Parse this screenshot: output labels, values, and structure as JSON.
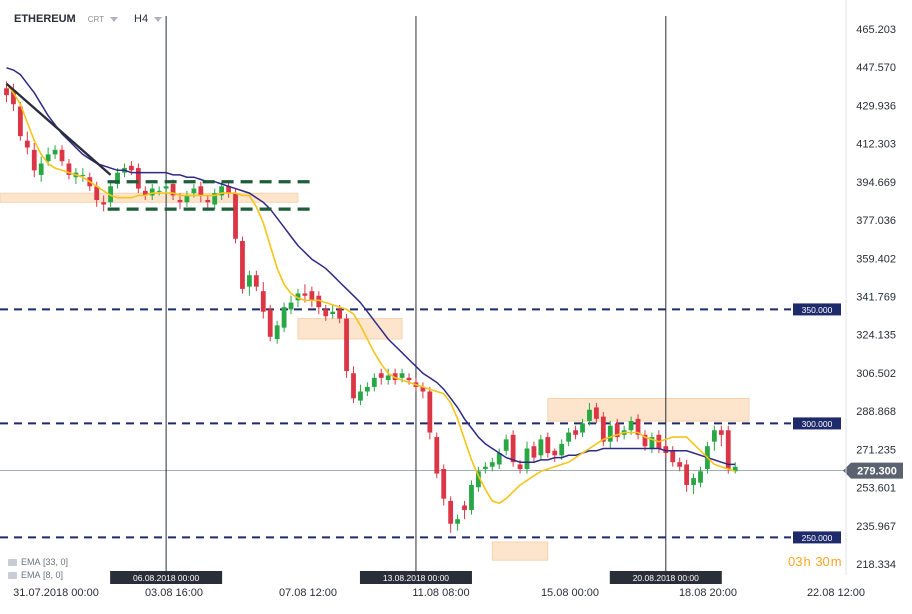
{
  "header": {
    "symbol": "ETHEREUM",
    "chart_kind": "CRT",
    "timeframe": "H4"
  },
  "legend": [
    {
      "label": "EMA",
      "params": "[33, 0]"
    },
    {
      "label": "EMA",
      "params": "[8, 0]"
    }
  ],
  "countdown": {
    "hours": "03",
    "h": "h",
    "minutes": "30",
    "m": "m"
  },
  "chart_data": {
    "type": "candlestick",
    "ylim": [
      238.334,
      473.0
    ],
    "y_ticks": [
      "465.203",
      "447.570",
      "429.936",
      "412.303",
      "394.669",
      "377.036",
      "359.402",
      "341.769",
      "324.135",
      "306.502",
      "288.868",
      "271.235",
      "253.601",
      "235.967",
      "218.334"
    ],
    "x_ticks": [
      "31.07.2018  00:00",
      "03.08  16:00",
      "07.08  12:00",
      "11.08  08:00",
      "15.08  00:00",
      "18.08  20:00",
      "22.08  12:00"
    ],
    "current_price": "279.300",
    "horizontal_levels": [
      {
        "price": 350.0,
        "label": "350.000"
      },
      {
        "price": 300.0,
        "label": "300.000"
      },
      {
        "price": 250.0,
        "label": "250.000"
      }
    ],
    "vertical_markers": [
      {
        "bar": 23,
        "label": "06.08.2018 00:00"
      },
      {
        "bar": 59,
        "label": "13.08.2018 00:00"
      },
      {
        "bar": 95,
        "label": "20.08.2018 00:00"
      }
    ],
    "zones": [
      {
        "b0": -1,
        "b1": 42,
        "p0": 397,
        "p1": 401
      },
      {
        "b0": 42,
        "b1": 57,
        "p0": 337,
        "p1": 346
      },
      {
        "b0": 78,
        "b1": 107,
        "p0": 301,
        "p1": 311
      },
      {
        "b0": 70,
        "b1": 78,
        "p0": 240,
        "p1": 248
      }
    ],
    "consolidation_box": {
      "b0": 15,
      "b1": 44,
      "p0": 394,
      "p1": 406
    },
    "trendline": {
      "b0": 0,
      "p0": 449,
      "b1": 15,
      "p1": 409
    },
    "series": [
      {
        "name": "EMA [33, 0]",
        "color": "#2e2a86",
        "values": [
          456,
          455,
          453,
          449,
          445,
          440,
          435,
          431,
          427,
          424,
          421,
          418,
          416,
          414,
          413,
          412,
          411,
          411,
          410,
          410,
          410,
          410,
          410,
          410,
          409,
          409,
          408,
          408,
          407,
          406,
          406,
          405,
          404,
          403,
          402,
          401,
          399,
          397,
          394,
          390,
          386,
          382,
          378,
          375,
          372,
          370,
          368,
          365,
          362,
          359,
          356,
          353,
          349,
          345,
          341,
          337,
          334,
          331,
          328,
          325,
          322,
          320,
          318,
          315,
          311,
          307,
          302,
          298,
          294,
          291,
          289,
          287,
          285,
          284,
          283,
          283,
          283,
          284,
          284,
          285,
          285,
          286,
          286,
          287,
          288,
          288,
          289,
          289,
          289,
          289,
          289,
          289,
          289,
          289,
          289,
          288,
          288,
          288,
          288,
          287,
          286,
          285,
          284,
          283,
          282,
          282
        ]
      },
      {
        "name": "EMA [8, 0]",
        "color": "#f5c518",
        "values": [
          449,
          445,
          440,
          432,
          424,
          418,
          414,
          412,
          411,
          410,
          409,
          408,
          406,
          404,
          402,
          400,
          399,
          399,
          399,
          400,
          400,
          401,
          401,
          401,
          401,
          400,
          400,
          400,
          400,
          400,
          400,
          401,
          401,
          401,
          400,
          400,
          395,
          388,
          378,
          368,
          361,
          357,
          355,
          354,
          354,
          354,
          353,
          352,
          351,
          350,
          348,
          343,
          337,
          331,
          326,
          322,
          320,
          319,
          318,
          317,
          316,
          315,
          314,
          313,
          309,
          302,
          293,
          284,
          277,
          271,
          266,
          265,
          267,
          270,
          273,
          275,
          277,
          279,
          280,
          281,
          282,
          283,
          285,
          287,
          289,
          291,
          293,
          294,
          295,
          296,
          296,
          296,
          294,
          293,
          292,
          293,
          294,
          294,
          294,
          291,
          288,
          285,
          282,
          281,
          280,
          279
        ]
      },
      {
        "name": "OHLC",
        "open": [
          447,
          446,
          439,
          424,
          420,
          409,
          415,
          418,
          420,
          414,
          408,
          409,
          408,
          404,
          397,
          397,
          405,
          410,
          413,
          412,
          402,
          400,
          402,
          403,
          405,
          398,
          397,
          401,
          404,
          398,
          396,
          400,
          404,
          401,
          380,
          360,
          365,
          358,
          350,
          337,
          342,
          350,
          354,
          357,
          358,
          356,
          350,
          348,
          350,
          346,
          322,
          310,
          314,
          316,
          322,
          319,
          322,
          320,
          320,
          318,
          316,
          314,
          294,
          280,
          266,
          256,
          264,
          262,
          272,
          280,
          281,
          282,
          288,
          295,
          282,
          280,
          290,
          286,
          294,
          288,
          286,
          292,
          297,
          296,
          301,
          307,
          303,
          292,
          300,
          295,
          297,
          302,
          295,
          289,
          295,
          290,
          288,
          283,
          282,
          273,
          274,
          280,
          292,
          297,
          297,
          279
        ],
        "close": [
          444,
          440,
          426,
          421,
          411,
          414,
          418,
          420,
          415,
          409,
          410,
          409,
          404,
          398,
          396,
          404,
          410,
          412,
          411,
          403,
          400,
          403,
          402,
          404,
          400,
          397,
          400,
          403,
          400,
          397,
          401,
          404,
          401,
          381,
          359,
          365,
          360,
          349,
          338,
          343,
          351,
          353,
          357,
          356,
          354,
          351,
          347,
          349,
          346,
          323,
          311,
          314,
          316,
          320,
          320,
          321,
          319,
          322,
          319,
          316,
          314,
          296,
          278,
          267,
          256,
          258,
          262,
          273,
          279,
          281,
          283,
          287,
          293,
          283,
          280,
          289,
          285,
          293,
          287,
          286,
          291,
          296,
          295,
          300,
          306,
          302,
          292,
          299,
          294,
          297,
          301,
          295,
          290,
          294,
          289,
          287,
          283,
          281,
          273,
          276,
          279,
          290,
          297,
          295,
          280,
          281
        ],
        "high": [
          450,
          449,
          441,
          428,
          423,
          417,
          421,
          422,
          422,
          416,
          412,
          412,
          410,
          406,
          400,
          406,
          412,
          414,
          415,
          414,
          404,
          405,
          404,
          406,
          407,
          401,
          402,
          405,
          406,
          400,
          403,
          406,
          406,
          403,
          382,
          367,
          367,
          362,
          352,
          345,
          353,
          356,
          359,
          361,
          360,
          358,
          352,
          352,
          352,
          348,
          325,
          317,
          318,
          322,
          324,
          324,
          324,
          324,
          322,
          320,
          318,
          316,
          296,
          282,
          268,
          260,
          266,
          275,
          281,
          283,
          285,
          289,
          295,
          297,
          284,
          292,
          292,
          295,
          296,
          289,
          293,
          298,
          299,
          302,
          309,
          309,
          305,
          301,
          302,
          299,
          303,
          304,
          297,
          296,
          297,
          292,
          290,
          285,
          284,
          278,
          281,
          292,
          299,
          299,
          299,
          283
        ],
        "low": [
          441,
          437,
          424,
          418,
          408,
          406,
          413,
          416,
          413,
          407,
          405,
          406,
          402,
          395,
          393,
          395,
          403,
          408,
          409,
          401,
          398,
          398,
          400,
          401,
          398,
          394,
          395,
          399,
          397,
          394,
          394,
          398,
          399,
          379,
          357,
          356,
          358,
          346,
          336,
          335,
          340,
          348,
          351,
          353,
          351,
          348,
          345,
          346,
          344,
          320,
          309,
          308,
          312,
          314,
          317,
          317,
          317,
          318,
          317,
          314,
          311,
          293,
          276,
          264,
          252,
          253,
          258,
          260,
          270,
          278,
          279,
          280,
          286,
          281,
          278,
          278,
          283,
          284,
          285,
          283,
          284,
          290,
          293,
          294,
          299,
          300,
          290,
          289,
          292,
          293,
          295,
          293,
          288,
          287,
          287,
          285,
          281,
          279,
          270,
          269,
          272,
          278,
          288,
          290,
          278,
          278
        ]
      }
    ]
  }
}
